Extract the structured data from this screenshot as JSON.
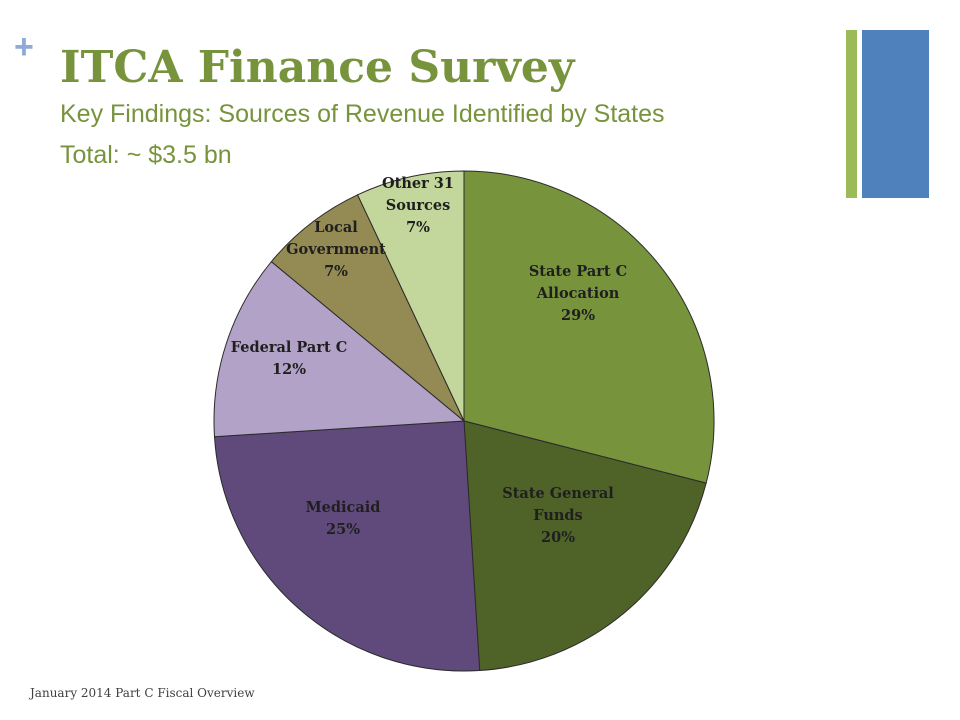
{
  "slide": {
    "title": "ITCA Finance Survey",
    "subtitle": "Key Findings:  Sources of Revenue Identified  by States",
    "total": "Total: ~ $3.5 bn",
    "footer": "January 2014 Part C Fiscal Overview",
    "plus_symbol": "+",
    "accent_colors": {
      "title": "#77933c",
      "bar_green": "#9bbb59",
      "bar_blue": "#4f81bd",
      "plus": "#8eaad6"
    }
  },
  "chart_data": {
    "type": "pie",
    "title": "",
    "slices": [
      {
        "label": [
          "State Part C",
          "Allocation",
          "29%"
        ],
        "value": 29,
        "color": "#77933c"
      },
      {
        "label": [
          "State General",
          "Funds",
          "20%"
        ],
        "value": 20,
        "color": "#4f6228"
      },
      {
        "label": [
          "Medicaid",
          "25%"
        ],
        "value": 25,
        "color": "#604a7b"
      },
      {
        "label": [
          "Federal Part C",
          "12%"
        ],
        "value": 12,
        "color": "#b3a2c7"
      },
      {
        "label": [
          "Local",
          "Government",
          "7%"
        ],
        "value": 7,
        "color": "#948a54"
      },
      {
        "label": [
          "Other 31",
          "Sources",
          "7%"
        ],
        "value": 7,
        "color": "#c3d69b"
      }
    ]
  }
}
